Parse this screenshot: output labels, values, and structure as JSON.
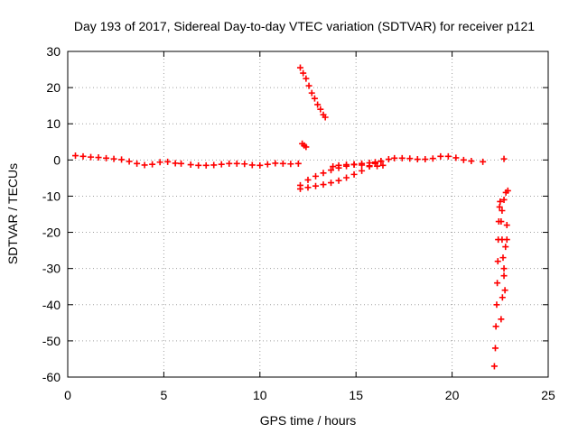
{
  "chart_data": {
    "type": "scatter",
    "title": "Day 193 of 2017, Sidereal Day-to-day VTEC variation (SDTVAR) for receiver p121",
    "xlabel": "GPS time / hours",
    "ylabel": "SDTVAR / TECUs",
    "xlim": [
      0,
      25
    ],
    "ylim": [
      -60,
      30
    ],
    "xticks": [
      0,
      5,
      10,
      15,
      20,
      25
    ],
    "yticks": [
      -60,
      -50,
      -40,
      -30,
      -20,
      -10,
      0,
      10,
      20,
      30
    ],
    "grid": true,
    "marker": "+",
    "color": "#ff0000",
    "series": [
      {
        "name": "main-band",
        "points": [
          [
            0.4,
            1.2
          ],
          [
            0.8,
            1.0
          ],
          [
            1.2,
            0.8
          ],
          [
            1.6,
            0.7
          ],
          [
            2.0,
            0.5
          ],
          [
            2.4,
            0.3
          ],
          [
            2.8,
            0.1
          ],
          [
            3.2,
            -0.4
          ],
          [
            3.6,
            -1.0
          ],
          [
            4.0,
            -1.4
          ],
          [
            4.4,
            -1.2
          ],
          [
            4.8,
            -0.6
          ],
          [
            5.2,
            -0.5
          ],
          [
            5.6,
            -0.9
          ],
          [
            5.9,
            -1.0
          ],
          [
            6.4,
            -1.3
          ],
          [
            6.8,
            -1.5
          ],
          [
            7.2,
            -1.5
          ],
          [
            7.6,
            -1.4
          ],
          [
            8.0,
            -1.2
          ],
          [
            8.4,
            -1.0
          ],
          [
            8.8,
            -1.0
          ],
          [
            9.2,
            -1.1
          ],
          [
            9.6,
            -1.4
          ],
          [
            10.0,
            -1.5
          ],
          [
            10.4,
            -1.2
          ],
          [
            10.8,
            -0.9
          ],
          [
            11.2,
            -1.0
          ],
          [
            11.6,
            -1.1
          ],
          [
            12.0,
            -1.0
          ]
        ]
      },
      {
        "name": "steep-descent",
        "points": [
          [
            12.1,
            25.5
          ],
          [
            12.25,
            24.0
          ],
          [
            12.4,
            22.5
          ],
          [
            12.55,
            20.5
          ],
          [
            12.7,
            18.5
          ],
          [
            12.85,
            17.0
          ],
          [
            13.0,
            15.3
          ],
          [
            13.15,
            14.0
          ],
          [
            13.3,
            12.5
          ],
          [
            13.4,
            11.8
          ]
        ]
      },
      {
        "name": "short-cluster",
        "points": [
          [
            12.2,
            4.5
          ],
          [
            12.3,
            4.0
          ],
          [
            12.4,
            3.6
          ]
        ]
      },
      {
        "name": "upper-arc",
        "points": [
          [
            12.1,
            -7.0
          ],
          [
            12.5,
            -5.5
          ],
          [
            12.9,
            -4.5
          ],
          [
            13.3,
            -3.6
          ],
          [
            13.7,
            -2.8
          ],
          [
            14.1,
            -2.2
          ],
          [
            14.5,
            -1.7
          ],
          [
            14.9,
            -1.3
          ],
          [
            15.3,
            -1.0
          ],
          [
            15.7,
            -0.8
          ],
          [
            16.0,
            -0.6
          ],
          [
            16.3,
            -0.3
          ],
          [
            16.7,
            0.2
          ],
          [
            17.0,
            0.5
          ],
          [
            17.4,
            0.5
          ],
          [
            17.8,
            0.4
          ],
          [
            18.2,
            0.2
          ],
          [
            18.6,
            0.2
          ],
          [
            19.0,
            0.4
          ],
          [
            19.4,
            1.0
          ],
          [
            19.8,
            1.0
          ],
          [
            20.2,
            0.6
          ],
          [
            20.6,
            0.0
          ],
          [
            21.0,
            -0.3
          ],
          [
            21.6,
            -0.5
          ],
          [
            22.7,
            0.3
          ]
        ]
      },
      {
        "name": "lower-arc",
        "points": [
          [
            12.1,
            -8.0
          ],
          [
            12.5,
            -7.6
          ],
          [
            12.9,
            -7.2
          ],
          [
            13.3,
            -6.8
          ],
          [
            13.7,
            -6.3
          ],
          [
            14.1,
            -5.7
          ],
          [
            14.5,
            -4.9
          ],
          [
            14.9,
            -4.0
          ],
          [
            15.3,
            -3.0
          ],
          [
            15.7,
            -1.8
          ],
          [
            16.0,
            -1.0
          ],
          [
            16.3,
            -0.4
          ]
        ]
      },
      {
        "name": "mid-band",
        "points": [
          [
            13.8,
            -1.8
          ],
          [
            14.1,
            -1.5
          ],
          [
            14.5,
            -1.3
          ],
          [
            14.9,
            -1.2
          ],
          [
            15.3,
            -1.4
          ],
          [
            15.7,
            -1.6
          ],
          [
            16.1,
            -1.7
          ],
          [
            16.4,
            -1.5
          ]
        ]
      },
      {
        "name": "deep-descent",
        "points": [
          [
            22.2,
            -57.0
          ],
          [
            22.25,
            -52.0
          ],
          [
            22.28,
            -46.0
          ],
          [
            22.32,
            -40.0
          ],
          [
            22.35,
            -34.0
          ],
          [
            22.38,
            -28.0
          ],
          [
            22.4,
            -22.0
          ],
          [
            22.43,
            -17.0
          ],
          [
            22.47,
            -13.0
          ],
          [
            22.5,
            -11.5
          ],
          [
            22.55,
            -17.0
          ],
          [
            22.6,
            -22.0
          ],
          [
            22.65,
            -27.0
          ],
          [
            22.7,
            -32.0
          ],
          [
            22.75,
            -36.0
          ],
          [
            22.55,
            -44.0
          ],
          [
            22.62,
            -38.0
          ],
          [
            22.7,
            -30.0
          ],
          [
            22.78,
            -24.0
          ],
          [
            22.85,
            -18.0
          ],
          [
            22.85,
            -22.0
          ],
          [
            22.6,
            -14.0
          ],
          [
            22.7,
            -11.0
          ],
          [
            22.8,
            -9.0
          ],
          [
            22.9,
            -8.5
          ]
        ]
      }
    ]
  }
}
